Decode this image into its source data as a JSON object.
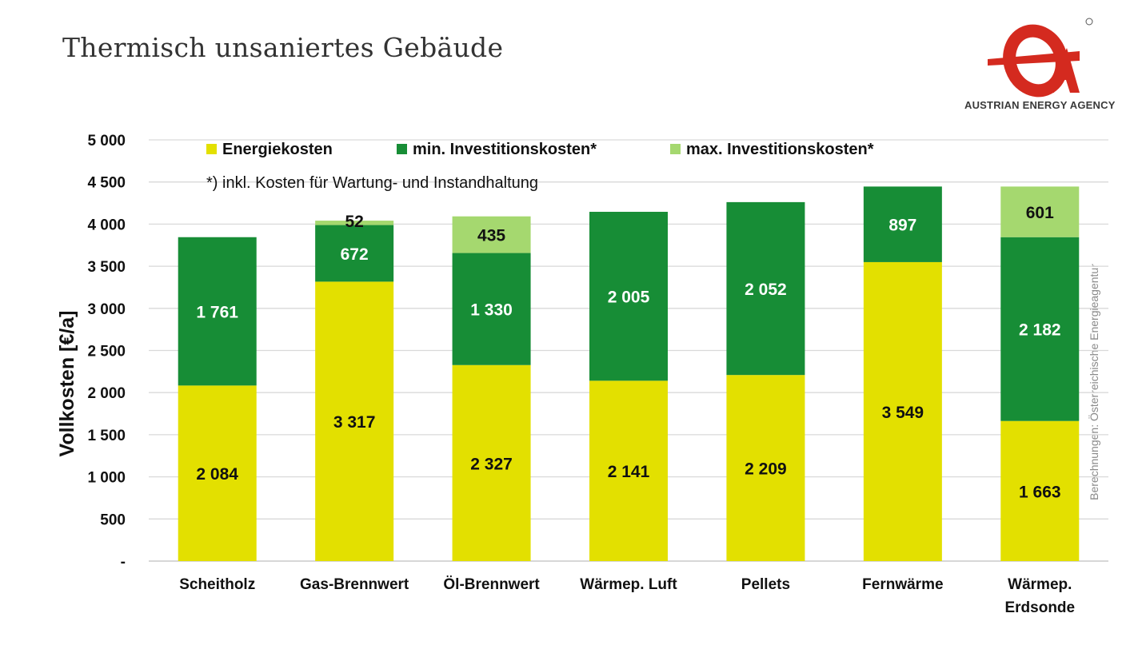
{
  "page": {
    "title": "Thermisch unsaniertes Gebäude",
    "credit": "Berechnungen: Österreichische Energieagentur",
    "logo_text": "AUSTRIAN ENERGY AGENCY",
    "logo_mark": "eA"
  },
  "chart_data": {
    "type": "bar",
    "stacked": true,
    "title": "Thermisch unsaniertes Gebäude",
    "ylabel": "Vollkosten [€/a]",
    "xlabel": "",
    "ylim": [
      0,
      5000
    ],
    "yticks": [
      0,
      500,
      1000,
      1500,
      2000,
      2500,
      3000,
      3500,
      4000,
      4500,
      5000
    ],
    "ytick_labels": [
      "-",
      "500",
      "1 000",
      "1 500",
      "2 000",
      "2 500",
      "3 000",
      "3 500",
      "4 000",
      "4 500",
      "5 000"
    ],
    "grid": true,
    "legend_position": "top",
    "note": "*) inkl. Kosten für Wartung- und Instandhaltung",
    "categories": [
      [
        "Scheitholz"
      ],
      [
        "Gas-Brennwert"
      ],
      [
        "Öl-Brennwert"
      ],
      [
        "Wärmep. Luft"
      ],
      [
        "Pellets"
      ],
      [
        "Fernwärme"
      ],
      [
        "Wärmep.",
        "Erdsonde"
      ]
    ],
    "series": [
      {
        "name": "Energiekosten",
        "color": "#e3e000",
        "label_color": "#111111",
        "values": [
          2084,
          3317,
          2327,
          2141,
          2209,
          3549,
          1663
        ],
        "labels": [
          "2 084",
          "3 317",
          "2 327",
          "2 141",
          "2 209",
          "3 549",
          "1 663"
        ]
      },
      {
        "name": "min. Investitionskosten*",
        "color": "#178d36",
        "label_color": "#ffffff",
        "values": [
          1761,
          672,
          1330,
          2005,
          2052,
          897,
          2182
        ],
        "labels": [
          "1 761",
          "672",
          "1 330",
          "2 005",
          "2 052",
          "897",
          "2 182"
        ]
      },
      {
        "name": "max. Investitionskosten*",
        "color": "#a5d86f",
        "label_color": "#111111",
        "values": [
          0,
          52,
          435,
          0,
          0,
          0,
          601
        ],
        "labels": [
          "",
          "52",
          "435",
          "",
          "",
          "",
          "601"
        ]
      }
    ]
  }
}
